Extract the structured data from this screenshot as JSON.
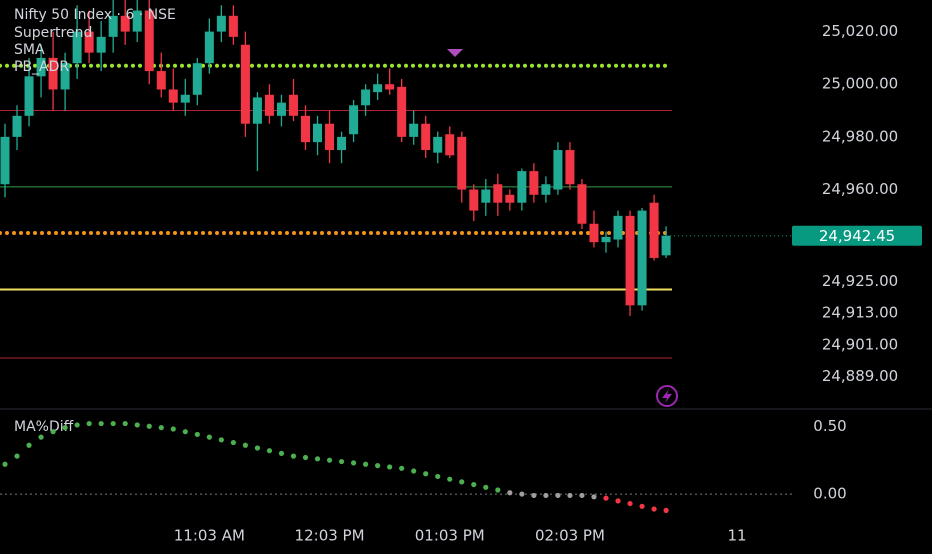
{
  "chart_data": {
    "type": "candlestick",
    "title": "Nifty 50 Index · 6 · NSE",
    "indicator_names": [
      "Supertrend",
      "SMA",
      "PB_ADR"
    ],
    "up_color": "#22ab94",
    "down_color": "#f23645",
    "open": [
      24962,
      24980,
      24988,
      25003,
      25010,
      24998,
      25008,
      25020,
      25012,
      25018,
      25026,
      25020,
      25028,
      25005,
      24998,
      24993,
      24996,
      25008,
      25020,
      25026,
      25015,
      24985,
      24996,
      24988,
      24996,
      24988,
      24978,
      24985,
      24975,
      24981,
      24992,
      24997,
      25000,
      24999,
      24980,
      24985,
      24974,
      24981,
      24980,
      24960,
      24955,
      24962,
      24958,
      24955,
      24967,
      24958,
      24960,
      24975,
      24962,
      24947,
      24940,
      24941,
      24950,
      24916,
      24955,
      24935
    ],
    "high": [
      24985,
      24992,
      25010,
      25015,
      25020,
      25012,
      25030,
      25028,
      25024,
      25032,
      25032,
      25032,
      25032,
      25012,
      25006,
      25002,
      25010,
      25025,
      25030,
      25030,
      25020,
      24997,
      25000,
      24996,
      25002,
      24992,
      24988,
      24990,
      24982,
      24994,
      25000,
      25004,
      25006,
      25002,
      24990,
      24988,
      24982,
      24984,
      24982,
      24962,
      24964,
      24966,
      24960,
      24968,
      24970,
      24965,
      24978,
      24978,
      24964,
      24952,
      24944,
      24952,
      24952,
      24953,
      24958,
      24946
    ],
    "low": [
      24957,
      24975,
      24984,
      24995,
      24990,
      24990,
      25002,
      25008,
      25005,
      25012,
      25015,
      25016,
      25000,
      24995,
      24990,
      24988,
      24992,
      25004,
      25016,
      25015,
      24980,
      24967,
      24985,
      24984,
      24986,
      24975,
      24973,
      24970,
      24970,
      24978,
      24988,
      24994,
      24996,
      24978,
      24977,
      24972,
      24970,
      24972,
      24955,
      24948,
      24950,
      24950,
      24952,
      24952,
      24955,
      24955,
      24958,
      24960,
      24945,
      24938,
      24936,
      24938,
      24912,
      24914,
      24933,
      24934
    ],
    "close": [
      24980,
      24988,
      25003,
      25010,
      24998,
      25008,
      25020,
      25012,
      25018,
      25026,
      25020,
      25028,
      25005,
      24998,
      24993,
      24996,
      25008,
      25020,
      25026,
      25018,
      24985,
      24995,
      24988,
      24993,
      24988,
      24978,
      24985,
      24975,
      24980,
      24992,
      24998,
      25000,
      24998,
      24980,
      24985,
      24975,
      24980,
      24973,
      24960,
      24952,
      24960,
      24955,
      24955,
      24967,
      24958,
      24962,
      24975,
      24962,
      24947,
      24940,
      24942,
      24950,
      24916,
      24952,
      24934,
      24942.45
    ],
    "categories": [
      null,
      null,
      null,
      null,
      null,
      null,
      null,
      null,
      null,
      null,
      null,
      null,
      null,
      null,
      null,
      null,
      null,
      "11:03 AM",
      null,
      null,
      null,
      null,
      null,
      null,
      null,
      null,
      null,
      "12:03 PM",
      null,
      null,
      null,
      null,
      null,
      null,
      null,
      null,
      null,
      "01:03 PM",
      null,
      null,
      null,
      null,
      null,
      null,
      null,
      null,
      null,
      "02:03 PM",
      null,
      null,
      null,
      null,
      null,
      null,
      null,
      null
    ],
    "x_extra_label": "11",
    "ylim": [
      24877,
      25032
    ],
    "yticks": [
      {
        "value": 25020,
        "label": "25,020.00"
      },
      {
        "value": 25000,
        "label": "25,000.00"
      },
      {
        "value": 24980,
        "label": "24,980.00"
      },
      {
        "value": 24960,
        "label": "24,960.00"
      },
      {
        "value": 24925,
        "label": "24,925.00"
      },
      {
        "value": 24913,
        "label": "24,913.00"
      },
      {
        "value": 24901,
        "label": "24,901.00"
      },
      {
        "value": 24889,
        "label": "24,889.00"
      }
    ],
    "last_price": {
      "value": 24942.45,
      "label": "24,942.45",
      "color": "#089981"
    },
    "levels": [
      {
        "value": 25007,
        "color": "#9be52d",
        "style": "dotted"
      },
      {
        "value": 24990,
        "color": "#b2232f",
        "style": "solid"
      },
      {
        "value": 24961,
        "color": "#2e9e46",
        "style": "solid"
      },
      {
        "value": 24943.5,
        "color": "#f7931a",
        "style": "dotted"
      },
      {
        "value": 24922,
        "color": "#f0e060",
        "style": "solid"
      },
      {
        "value": 24896,
        "color": "#b2232f",
        "style": "solid"
      }
    ],
    "indicator": {
      "type": "scatter",
      "name": "MA%Diff",
      "values": [
        0.22,
        0.28,
        0.36,
        0.42,
        0.46,
        0.49,
        0.51,
        0.52,
        0.52,
        0.52,
        0.52,
        0.51,
        0.5,
        0.49,
        0.48,
        0.46,
        0.44,
        0.42,
        0.4,
        0.38,
        0.36,
        0.34,
        0.32,
        0.3,
        0.28,
        0.27,
        0.26,
        0.25,
        0.24,
        0.23,
        0.22,
        0.21,
        0.2,
        0.19,
        0.17,
        0.15,
        0.13,
        0.11,
        0.09,
        0.07,
        0.05,
        0.03,
        0.01,
        0.0,
        -0.01,
        -0.01,
        -0.01,
        -0.01,
        -0.01,
        -0.02,
        -0.03,
        -0.05,
        -0.07,
        -0.09,
        -0.11,
        -0.12
      ],
      "colors": [
        "#4caf50",
        "#4caf50",
        "#4caf50",
        "#4caf50",
        "#4caf50",
        "#4caf50",
        "#4caf50",
        "#4caf50",
        "#4caf50",
        "#4caf50",
        "#4caf50",
        "#4caf50",
        "#4caf50",
        "#4caf50",
        "#4caf50",
        "#4caf50",
        "#4caf50",
        "#4caf50",
        "#4caf50",
        "#4caf50",
        "#4caf50",
        "#4caf50",
        "#4caf50",
        "#4caf50",
        "#4caf50",
        "#4caf50",
        "#4caf50",
        "#4caf50",
        "#4caf50",
        "#4caf50",
        "#4caf50",
        "#4caf50",
        "#4caf50",
        "#4caf50",
        "#4caf50",
        "#4caf50",
        "#4caf50",
        "#4caf50",
        "#4caf50",
        "#4caf50",
        "#4caf50",
        "#4caf50",
        "#9e9e9e",
        "#9e9e9e",
        "#9e9e9e",
        "#9e9e9e",
        "#9e9e9e",
        "#9e9e9e",
        "#9e9e9e",
        "#9e9e9e",
        "#f23645",
        "#f23645",
        "#f23645",
        "#f23645",
        "#f23645",
        "#f23645"
      ],
      "ylim": [
        -0.25,
        0.62
      ],
      "yticks": [
        {
          "value": 0.5,
          "label": "0.50"
        },
        {
          "value": 0,
          "label": "0.00"
        }
      ]
    }
  }
}
